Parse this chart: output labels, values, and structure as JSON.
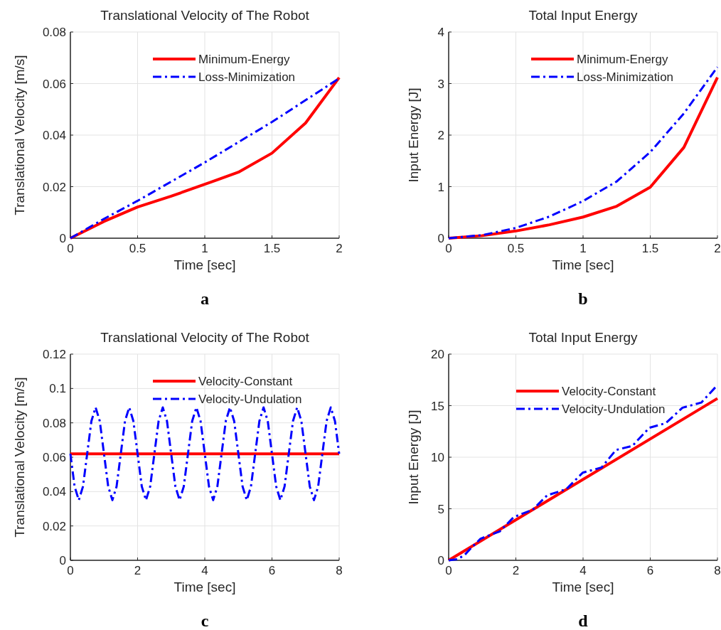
{
  "chart_data": [
    {
      "type": "line",
      "title": "Translational Velocity of The Robot",
      "xlabel": "Time [sec]",
      "ylabel": "Translational Velocity [m/s]",
      "annotations": [
        "a"
      ],
      "xlim": [
        0,
        2
      ],
      "xticks": [
        0,
        0.5,
        1,
        1.5,
        2
      ],
      "ylim": [
        0,
        0.08
      ],
      "yticks": [
        0,
        0.02,
        0.04,
        0.06,
        0.08
      ],
      "grid": true,
      "legend": "top right",
      "series": [
        {
          "name": "Minimum-Energy",
          "color": "#ff0000",
          "line_style": "solid",
          "x": [
            0,
            0.25,
            0.5,
            0.75,
            1,
            1.25,
            1.5,
            1.75,
            2
          ],
          "values": [
            0,
            0.0065,
            0.0121,
            0.0163,
            0.0209,
            0.0256,
            0.033,
            0.0447,
            0.0623
          ]
        },
        {
          "name": "Loss-Minimization",
          "color": "#0000ff",
          "line_style": "dashed",
          "x": [
            0,
            0.25,
            0.5,
            1,
            1.5,
            2
          ],
          "values": [
            0,
            0.0075,
            0.0145,
            0.0294,
            0.0451,
            0.062
          ]
        }
      ]
    },
    {
      "type": "line",
      "title": "Total Input Energy",
      "xlabel": "Time [sec]",
      "ylabel": "Input Energy [J]",
      "annotations": [
        "b"
      ],
      "xlim": [
        0,
        2
      ],
      "xticks": [
        0,
        0.5,
        1,
        1.5,
        2
      ],
      "ylim": [
        0,
        4
      ],
      "yticks": [
        0,
        1,
        2,
        3,
        4
      ],
      "grid": true,
      "legend": "top right",
      "series": [
        {
          "name": "Minimum-Energy",
          "color": "#ff0000",
          "line_style": "solid",
          "x": [
            0,
            0.25,
            0.5,
            0.75,
            1,
            1.25,
            1.5,
            1.75,
            2
          ],
          "values": [
            0,
            0.05,
            0.14,
            0.26,
            0.41,
            0.62,
            0.99,
            1.76,
            3.12
          ]
        },
        {
          "name": "Loss-Minimization",
          "color": "#0000ff",
          "line_style": "dashed",
          "x": [
            0,
            0.25,
            0.5,
            0.75,
            1,
            1.25,
            1.5,
            1.75,
            2
          ],
          "values": [
            0,
            0.06,
            0.2,
            0.42,
            0.72,
            1.1,
            1.67,
            2.42,
            3.32
          ]
        }
      ]
    },
    {
      "type": "line",
      "title": "Translational Velocity of The Robot",
      "xlabel": "Time [sec]",
      "ylabel": "Translational Velocity [m/s]",
      "annotations": [
        "c"
      ],
      "xlim": [
        0,
        8
      ],
      "xticks": [
        0,
        2,
        4,
        6,
        8
      ],
      "ylim": [
        0,
        0.12
      ],
      "yticks": [
        0,
        0.02,
        0.04,
        0.06,
        0.08,
        0.1,
        0.12
      ],
      "grid": true,
      "legend": "top right",
      "series": [
        {
          "name": "Velocity-Constant",
          "color": "#ff0000",
          "line_style": "solid",
          "x": [
            0,
            8
          ],
          "values": [
            0.062,
            0.062
          ]
        },
        {
          "name": "Velocity-Undulation",
          "color": "#0000ff",
          "line_style": "dashed",
          "x": [
            0,
            0.125,
            0.25,
            0.375,
            0.5,
            0.625,
            0.75,
            0.875,
            1,
            1.125,
            1.25,
            1.375,
            1.5,
            1.625,
            1.75,
            1.875,
            2,
            2.125,
            2.25,
            2.375,
            2.5,
            2.625,
            2.75,
            2.875,
            3,
            3.125,
            3.25,
            3.375,
            3.5,
            3.625,
            3.75,
            3.875,
            4,
            4.125,
            4.25,
            4.375,
            4.5,
            4.625,
            4.75,
            4.875,
            5,
            5.125,
            5.25,
            5.375,
            5.5,
            5.625,
            5.75,
            5.875,
            6,
            6.125,
            6.25,
            6.375,
            6.5,
            6.625,
            6.75,
            6.875,
            7,
            7.125,
            7.25,
            7.375,
            7.5,
            7.625,
            7.75,
            7.875,
            8
          ],
          "values": [
            0.062,
            0.043,
            0.035,
            0.043,
            0.062,
            0.081,
            0.089,
            0.081,
            0.062,
            0.043,
            0.035,
            0.043,
            0.062,
            0.081,
            0.089,
            0.081,
            0.062,
            0.043,
            0.035,
            0.043,
            0.062,
            0.081,
            0.089,
            0.081,
            0.062,
            0.043,
            0.035,
            0.043,
            0.062,
            0.081,
            0.089,
            0.081,
            0.062,
            0.043,
            0.035,
            0.043,
            0.062,
            0.081,
            0.089,
            0.081,
            0.062,
            0.043,
            0.035,
            0.043,
            0.062,
            0.081,
            0.089,
            0.081,
            0.062,
            0.043,
            0.035,
            0.043,
            0.062,
            0.081,
            0.089,
            0.081,
            0.062,
            0.043,
            0.035,
            0.043,
            0.062,
            0.081,
            0.089,
            0.081,
            0.062
          ]
        }
      ]
    },
    {
      "type": "line",
      "title": "Total Input Energy",
      "xlabel": "Time [sec]",
      "ylabel": "Input Energy [J]",
      "annotations": [
        "d"
      ],
      "xlim": [
        0,
        8
      ],
      "xticks": [
        0,
        2,
        4,
        6,
        8
      ],
      "ylim": [
        0,
        20
      ],
      "yticks": [
        0,
        5,
        10,
        15,
        20
      ],
      "grid": true,
      "legend": "top",
      "series": [
        {
          "name": "Velocity-Constant",
          "color": "#ff0000",
          "line_style": "solid",
          "x": [
            0,
            8
          ],
          "values": [
            0,
            15.7
          ]
        },
        {
          "name": "Velocity-Undulation",
          "color": "#0000ff",
          "line_style": "dashed",
          "x": [
            0,
            0.25,
            0.47,
            0.67,
            0.95,
            1.52,
            1.94,
            2.5,
            2.93,
            3.5,
            3.99,
            4.55,
            4.98,
            5.47,
            5.97,
            6.46,
            6.96,
            7.52,
            8
          ],
          "values": [
            0,
            0.1,
            0.5,
            1.2,
            2.1,
            2.8,
            4.2,
            4.9,
            6.3,
            6.9,
            8.5,
            9.0,
            10.7,
            11.1,
            12.85,
            13.3,
            14.8,
            15.3,
            17.0
          ]
        }
      ]
    }
  ]
}
